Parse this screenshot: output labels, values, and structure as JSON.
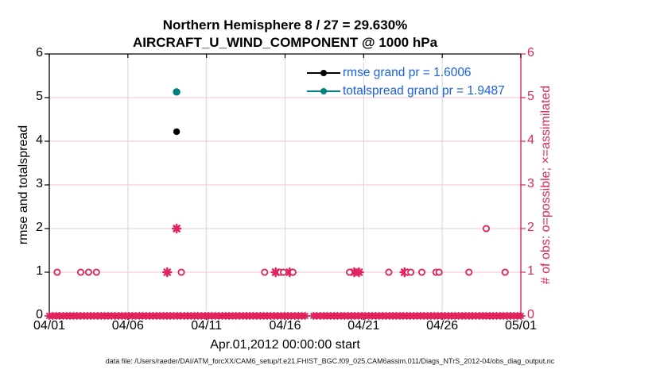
{
  "title": {
    "line1": "Northern Hemisphere 8 / 27 = 29.630%",
    "line2": "AIRCRAFT_U_WIND_COMPONENT @ 1000 hPa"
  },
  "axes": {
    "left_label": "rmse and totalspread",
    "right_label": "# of obs: o=possible; ×=assimilated",
    "x_label": "Apr.01,2012 00:00:00 start",
    "x_tick_labels": [
      "04/01",
      "04/06",
      "04/11",
      "04/16",
      "04/21",
      "04/26",
      "05/01"
    ],
    "x_tick_days": [
      0,
      5,
      10,
      15,
      20,
      25,
      30
    ],
    "y_tick_labels": [
      "0",
      "1",
      "2",
      "3",
      "4",
      "5",
      "6"
    ],
    "y_range": [
      0,
      6
    ],
    "x_range_days": [
      0,
      30
    ]
  },
  "legend": [
    {
      "label": "rmse grand pr = 1.6006",
      "color": "#000000"
    },
    {
      "label": "totalspread grand pr = 1.9487",
      "color": "#008080"
    }
  ],
  "footer": "data file: /Users/raeder/DAI/ATM_forcXX/CAM6_setup/f.e21.FHIST_BGC.f09_025.CAM6assim.011/Diags_NTrS_2012-04/obs_diag_output.nc",
  "colors": {
    "obs_pink": "#e0245e",
    "teal": "#008080",
    "legend_text": "#1a5fe0",
    "grid_vertical": "#d9d9d9",
    "grid_horizontal": "#f7cedb",
    "axis_black": "#000000",
    "background": "#ffffff"
  },
  "chart_data": {
    "type": "scatter",
    "title": "Northern Hemisphere 8 / 27 = 29.630% — AIRCRAFT_U_WIND_COMPONENT @ 1000 hPa",
    "xlabel": "Apr.01,2012 00:00:00 start",
    "ylabel_left": "rmse and totalspread",
    "ylabel_right": "# of obs: o=possible; ×=assimilated",
    "x_axis": {
      "tick_labels": [
        "04/01",
        "04/06",
        "04/11",
        "04/16",
        "04/21",
        "04/26",
        "05/01"
      ],
      "tick_days": [
        0,
        5,
        10,
        15,
        20,
        25,
        30
      ],
      "range_days": [
        0,
        30
      ]
    },
    "y_axis": {
      "ticks": [
        0,
        1,
        2,
        3,
        4,
        5,
        6
      ],
      "range": [
        0,
        6
      ]
    },
    "grid": {
      "horizontal": true,
      "vertical": true
    },
    "legend_position": "top-right-inside",
    "series": [
      {
        "name": "rmse",
        "legend": "rmse grand pr = 1.6006",
        "marker": "filled-circle",
        "color": "#000000",
        "points": [
          [
            8.1,
            4.22
          ]
        ]
      },
      {
        "name": "totalspread",
        "legend": "totalspread grand pr = 1.9487",
        "marker": "filled-circle",
        "color": "#008080",
        "points": [
          [
            8.1,
            5.13
          ]
        ]
      },
      {
        "name": "possible-obs",
        "marker": "open-circle",
        "color": "#e0245e",
        "points": [
          [
            0.5,
            1
          ],
          [
            2.0,
            1
          ],
          [
            2.5,
            1
          ],
          [
            3.0,
            1
          ],
          [
            8.4,
            1
          ],
          [
            13.7,
            1
          ],
          [
            14.7,
            1
          ],
          [
            14.9,
            1
          ],
          [
            15.5,
            1
          ],
          [
            19.1,
            1
          ],
          [
            21.6,
            1
          ],
          [
            22.8,
            1
          ],
          [
            23.0,
            1
          ],
          [
            23.7,
            1
          ],
          [
            24.6,
            1
          ],
          [
            24.8,
            1
          ],
          [
            26.7,
            1
          ],
          [
            29.0,
            1
          ],
          [
            27.8,
            2
          ]
        ]
      },
      {
        "name": "assimilated-obs",
        "marker": "asterisk",
        "color": "#e0245e",
        "points": [
          [
            7.5,
            1
          ],
          [
            14.4,
            1
          ],
          [
            15.3,
            1
          ],
          [
            19.4,
            1
          ],
          [
            19.7,
            1
          ],
          [
            22.6,
            1
          ],
          [
            8.1,
            2
          ]
        ]
      },
      {
        "name": "assimilated-obs-zero-band",
        "marker": "asterisk",
        "color": "#e0245e",
        "y": 0,
        "segments_days": [
          [
            0,
            16.4
          ],
          [
            16.8,
            30
          ]
        ],
        "marker_step_days": 0.22
      }
    ]
  }
}
